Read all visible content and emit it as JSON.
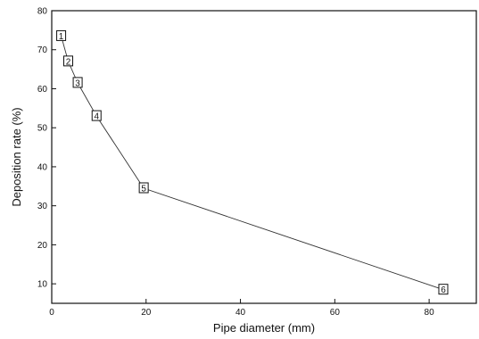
{
  "chart_data": {
    "type": "line",
    "xlabel": "Pipe diameter (mm)",
    "ylabel": "Deposition rate (%)",
    "xlim": [
      0,
      90
    ],
    "ylim": [
      5,
      80
    ],
    "xticks": [
      "0",
      "20",
      "40",
      "60",
      "80"
    ],
    "xtick_values": [
      0,
      20,
      40,
      60,
      80
    ],
    "yticks": [
      "10",
      "20",
      "30",
      "40",
      "50",
      "60",
      "70",
      "80"
    ],
    "ytick_values": [
      10,
      20,
      30,
      40,
      50,
      60,
      70,
      80
    ],
    "grid": false,
    "series": [
      {
        "x": [
          2,
          3.5,
          5.5,
          9.5,
          19.5,
          83
        ],
        "values": [
          73.5,
          67,
          61.5,
          53,
          34.5,
          8.5
        ],
        "point_labels": [
          "1",
          "2",
          "3",
          "4",
          "5",
          "6"
        ]
      }
    ]
  }
}
